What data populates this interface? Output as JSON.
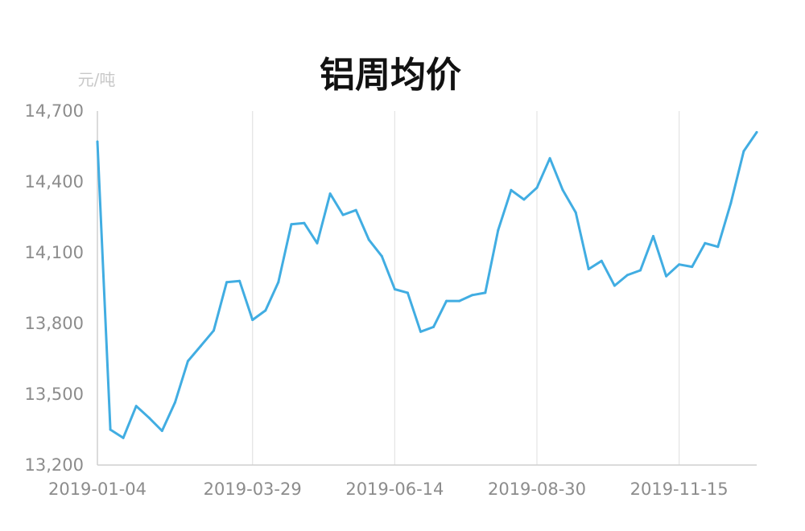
{
  "chart_data": {
    "type": "line",
    "title": "铝周均价",
    "y_unit_label": "元/吨",
    "xlabel": "",
    "ylabel": "",
    "ylim": [
      13200,
      14700
    ],
    "y_ticks": [
      13200,
      13500,
      13800,
      14100,
      14400,
      14700
    ],
    "y_tick_labels": [
      "13,200",
      "13,500",
      "13,800",
      "14,100",
      "14,400",
      "14,700"
    ],
    "x_tick_labels": [
      "2019-01-04",
      "2019-03-29",
      "2019-06-14",
      "2019-08-30",
      "2019-11-15"
    ],
    "grid": "vertical",
    "line_color": "#41ade2",
    "x": [
      "2019-01-04",
      "2019-01-11",
      "2019-01-18",
      "2019-01-25",
      "2019-02-01",
      "2019-02-08",
      "2019-02-15",
      "2019-02-22",
      "2019-03-01",
      "2019-03-08",
      "2019-03-15",
      "2019-03-22",
      "2019-03-29",
      "2019-04-05",
      "2019-04-12",
      "2019-04-19",
      "2019-04-26",
      "2019-05-03",
      "2019-05-10",
      "2019-05-17",
      "2019-05-24",
      "2019-05-31",
      "2019-06-07",
      "2019-06-14",
      "2019-06-21",
      "2019-06-28",
      "2019-07-05",
      "2019-07-12",
      "2019-07-19",
      "2019-07-26",
      "2019-08-02",
      "2019-08-09",
      "2019-08-16",
      "2019-08-23",
      "2019-08-30",
      "2019-09-06",
      "2019-09-13",
      "2019-09-20",
      "2019-09-27",
      "2019-10-04",
      "2019-10-11",
      "2019-10-18",
      "2019-10-25",
      "2019-11-01",
      "2019-11-08",
      "2019-11-15",
      "2019-11-22",
      "2019-11-29",
      "2019-12-06",
      "2019-12-13",
      "2019-12-20",
      "2019-12-27"
    ],
    "values": [
      14570,
      13350,
      13315,
      13450,
      13400,
      13345,
      13465,
      13640,
      13705,
      13770,
      13975,
      13980,
      13815,
      13855,
      13975,
      14220,
      14225,
      14140,
      14350,
      14260,
      14280,
      14155,
      14085,
      13945,
      13930,
      13765,
      13785,
      13895,
      13895,
      13920,
      13930,
      14195,
      14365,
      14325,
      14375,
      14500,
      14365,
      14270,
      14030,
      14065,
      13960,
      14005,
      14025,
      14170,
      14000,
      14050,
      14040,
      14140,
      14125,
      14310,
      14530,
      14610
    ]
  }
}
